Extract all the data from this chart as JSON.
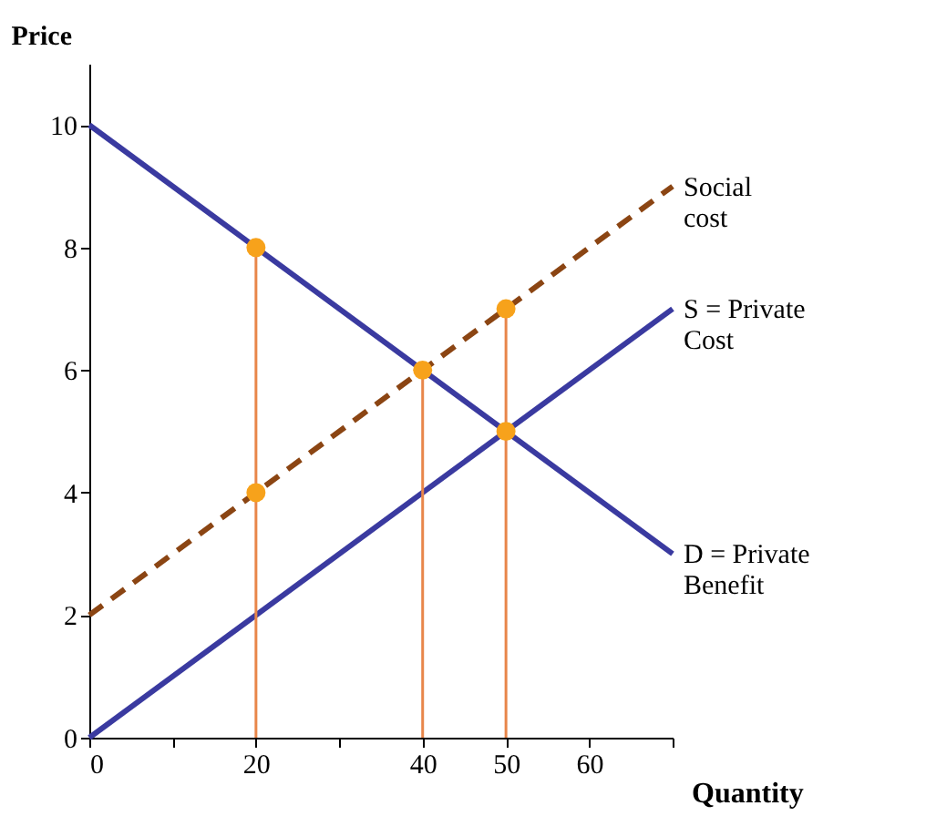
{
  "chart_data": {
    "type": "line",
    "xlabel": "Quantity",
    "ylabel": "Price",
    "xlim": [
      0,
      70
    ],
    "ylim": [
      0,
      11
    ],
    "xticks": [
      0,
      {
        "value": 10,
        "label": null
      },
      20,
      {
        "value": 30,
        "label": null
      },
      40,
      50,
      60,
      {
        "value": 70,
        "label": null
      }
    ],
    "yticks": [
      0,
      2,
      4,
      6,
      8,
      10
    ],
    "grid": false,
    "series": [
      {
        "name": "D = Private\nBenefit",
        "color": "#3a3aa0",
        "x": [
          0,
          70
        ],
        "values": [
          10,
          3
        ],
        "line_style": "solid"
      },
      {
        "name": "S = Private\nCost",
        "color": "#3a3aa0",
        "x": [
          0,
          70
        ],
        "values": [
          0,
          7
        ],
        "line_style": "solid"
      },
      {
        "name": "Social\ncost",
        "color": "#8b4513",
        "x": [
          0,
          70
        ],
        "values": [
          2,
          9
        ],
        "line_style": "dashed"
      },
      {
        "color": "#e8864a",
        "x": [
          20,
          20
        ],
        "values": [
          0,
          8
        ],
        "line_style": "solid"
      },
      {
        "color": "#e8864a",
        "x": [
          40,
          40
        ],
        "values": [
          0,
          6
        ],
        "line_style": "solid"
      },
      {
        "color": "#e8864a",
        "x": [
          50,
          50
        ],
        "values": [
          0,
          7
        ],
        "line_style": "solid"
      },
      {
        "type": "scatter",
        "color": "#f7a21b",
        "marker": "circle",
        "x": [
          20,
          20,
          40,
          50,
          50
        ],
        "values": [
          8,
          4,
          6,
          5,
          7
        ]
      }
    ]
  }
}
